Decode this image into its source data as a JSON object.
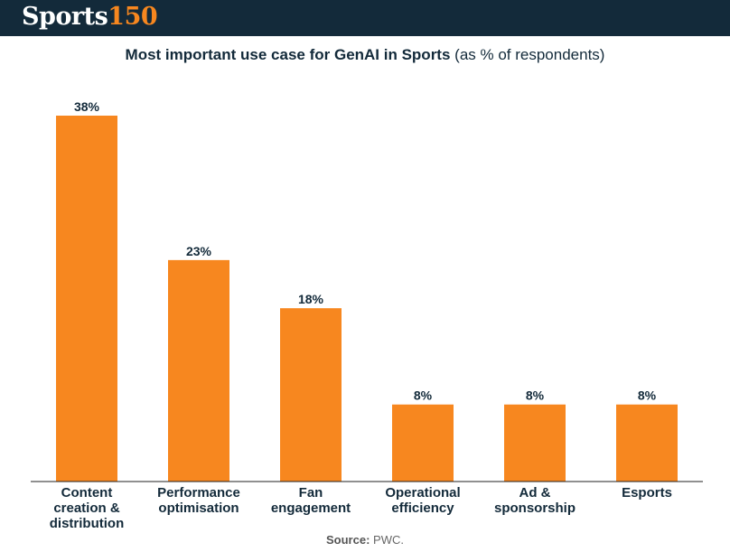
{
  "brand": {
    "logo_word": "Sports",
    "logo_number": "150"
  },
  "colors": {
    "header_bg": "#132a3a",
    "bar": "#f7871f",
    "accent": "#f7871f",
    "text": "#132a3a"
  },
  "chart_data": {
    "type": "bar",
    "title": "Most important use case for GenAI in Sports",
    "subtitle": "(as % of respondents)",
    "categories": [
      [
        "Content",
        "creation &",
        "distribution"
      ],
      [
        "Performance",
        "optimisation"
      ],
      [
        "Fan",
        "engagement"
      ],
      [
        "Operational",
        "efficiency"
      ],
      [
        "Ad &",
        "sponsorship"
      ],
      [
        "Esports"
      ]
    ],
    "values": [
      38,
      23,
      18,
      8,
      8,
      8
    ],
    "value_labels": [
      "38%",
      "23%",
      "18%",
      "8%",
      "8%",
      "8%"
    ],
    "unit": "%",
    "ylim": [
      0,
      38
    ],
    "xlabel": "",
    "ylabel": "",
    "grid": false
  },
  "source": {
    "label": "Source:",
    "text": "PWC."
  }
}
